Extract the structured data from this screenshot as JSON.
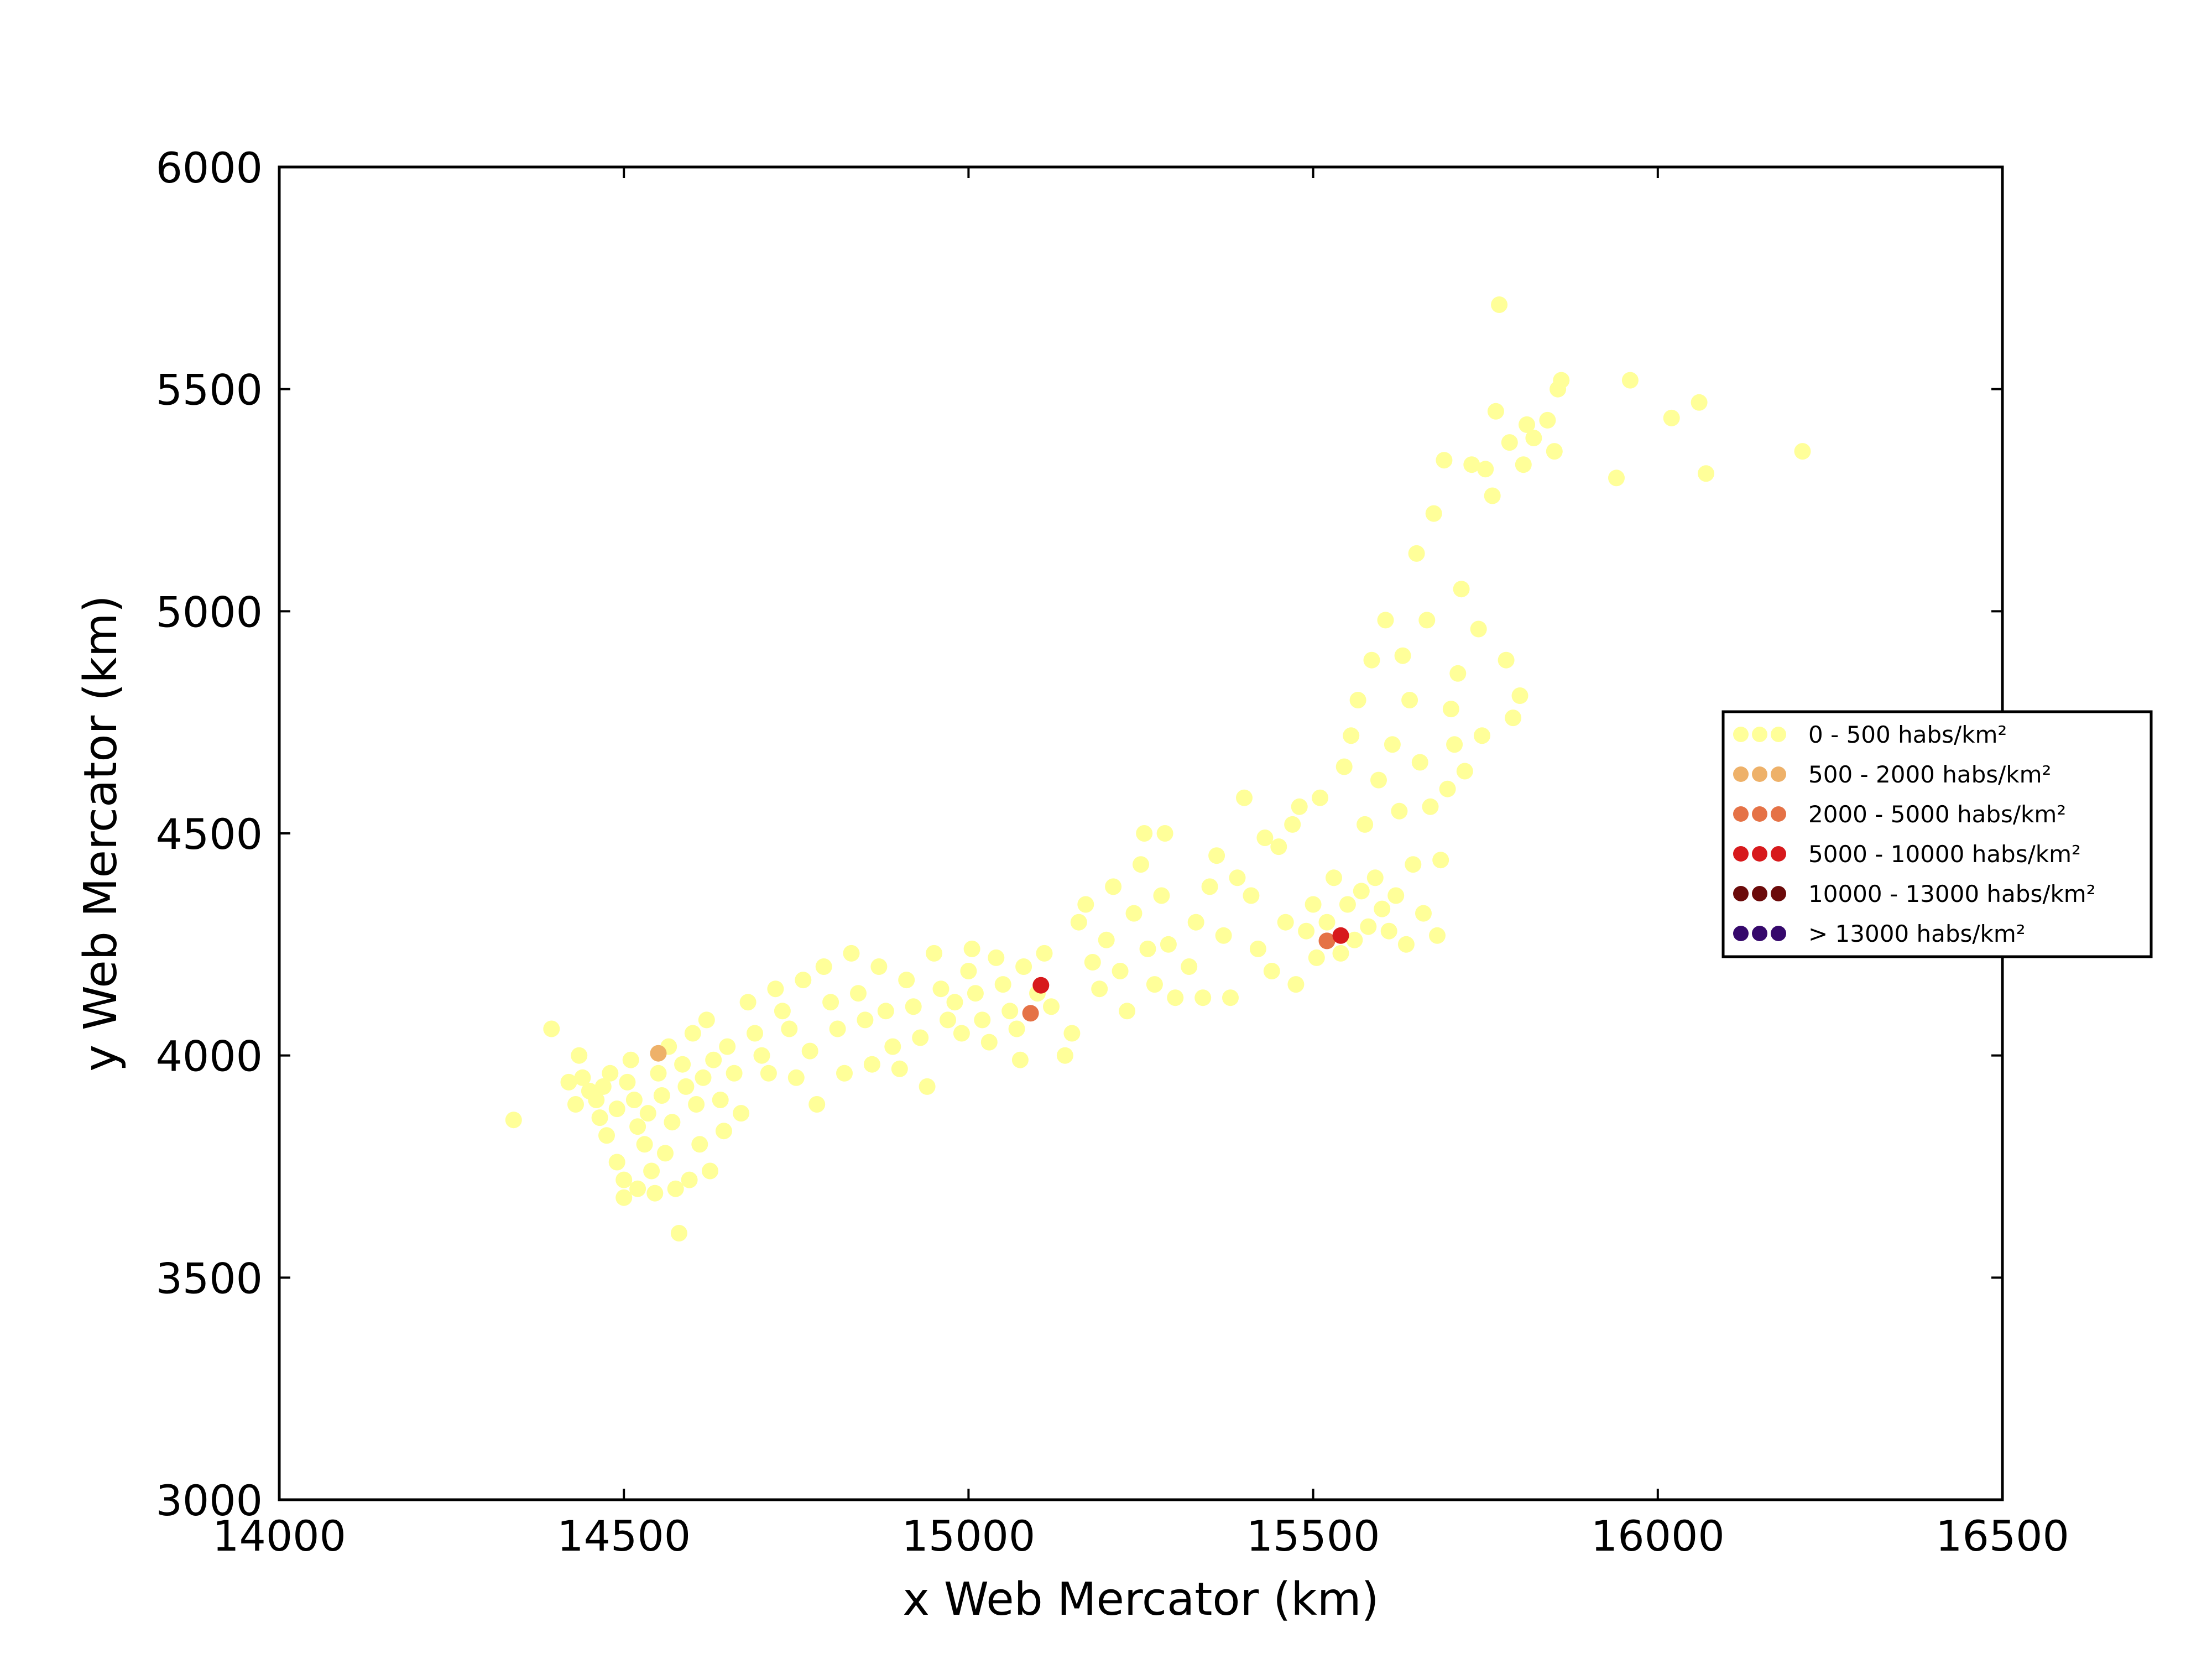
{
  "chart_data": {
    "type": "scatter",
    "title": "",
    "xlabel": "x Web Mercator (km)",
    "ylabel": "y Web Mercator (km)",
    "xlim": [
      14000,
      16500
    ],
    "ylim": [
      3000,
      6000
    ],
    "xticks": [
      14000,
      14500,
      15000,
      15500,
      16000,
      16500
    ],
    "yticks": [
      3000,
      3500,
      4000,
      4500,
      5000,
      5500,
      6000
    ],
    "grid": false,
    "legend_position": "right",
    "categories": [
      {
        "label": "0 - 500 habs/km²",
        "color": "#ffff99"
      },
      {
        "label": "500 - 2000 habs/km²",
        "color": "#eeb169"
      },
      {
        "label": "2000 - 5000 habs/km²",
        "color": "#e57246"
      },
      {
        "label": "5000 - 10000 habs/km²",
        "color": "#d7191c"
      },
      {
        "label": "10000 - 13000 habs/km²",
        "color": "#6b0a0a"
      },
      {
        "label": "> 13000 habs/km²",
        "color": "#35086b"
      }
    ],
    "series": [
      {
        "name": "0 - 500 habs/km²",
        "points": [
          [
            14340,
            3855
          ],
          [
            14395,
            4060
          ],
          [
            14420,
            3940
          ],
          [
            14430,
            3890
          ],
          [
            14435,
            4000
          ],
          [
            14440,
            3950
          ],
          [
            14450,
            3920
          ],
          [
            14460,
            3900
          ],
          [
            14465,
            3860
          ],
          [
            14470,
            3930
          ],
          [
            14475,
            3820
          ],
          [
            14480,
            3960
          ],
          [
            14490,
            3880
          ],
          [
            14490,
            3760
          ],
          [
            14500,
            3720
          ],
          [
            14500,
            3680
          ],
          [
            14505,
            3940
          ],
          [
            14510,
            3990
          ],
          [
            14515,
            3900
          ],
          [
            14520,
            3840
          ],
          [
            14520,
            3700
          ],
          [
            14530,
            3800
          ],
          [
            14535,
            3870
          ],
          [
            14540,
            3740
          ],
          [
            14545,
            3690
          ],
          [
            14550,
            3960
          ],
          [
            14555,
            3910
          ],
          [
            14560,
            3780
          ],
          [
            14565,
            4020
          ],
          [
            14570,
            3850
          ],
          [
            14575,
            3700
          ],
          [
            14580,
            3600
          ],
          [
            14585,
            3980
          ],
          [
            14590,
            3930
          ],
          [
            14595,
            3720
          ],
          [
            14600,
            4050
          ],
          [
            14605,
            3890
          ],
          [
            14610,
            3800
          ],
          [
            14615,
            3950
          ],
          [
            14620,
            4080
          ],
          [
            14625,
            3740
          ],
          [
            14630,
            3990
          ],
          [
            14640,
            3900
          ],
          [
            14645,
            3830
          ],
          [
            14650,
            4020
          ],
          [
            14660,
            3960
          ],
          [
            14670,
            3870
          ],
          [
            14680,
            4120
          ],
          [
            14690,
            4050
          ],
          [
            14700,
            4000
          ],
          [
            14710,
            3960
          ],
          [
            14720,
            4150
          ],
          [
            14730,
            4100
          ],
          [
            14740,
            4060
          ],
          [
            14750,
            3950
          ],
          [
            14760,
            4170
          ],
          [
            14770,
            4010
          ],
          [
            14780,
            3890
          ],
          [
            14790,
            4200
          ],
          [
            14800,
            4120
          ],
          [
            14810,
            4060
          ],
          [
            14820,
            3960
          ],
          [
            14830,
            4230
          ],
          [
            14840,
            4140
          ],
          [
            14850,
            4080
          ],
          [
            14860,
            3980
          ],
          [
            14870,
            4200
          ],
          [
            14880,
            4100
          ],
          [
            14890,
            4020
          ],
          [
            14900,
            3970
          ],
          [
            14910,
            4170
          ],
          [
            14920,
            4110
          ],
          [
            14930,
            4040
          ],
          [
            14940,
            3930
          ],
          [
            14950,
            4230
          ],
          [
            14960,
            4150
          ],
          [
            14970,
            4080
          ],
          [
            14980,
            4120
          ],
          [
            14990,
            4050
          ],
          [
            15000,
            4190
          ],
          [
            15005,
            4240
          ],
          [
            15010,
            4140
          ],
          [
            15020,
            4080
          ],
          [
            15030,
            4030
          ],
          [
            15040,
            4220
          ],
          [
            15050,
            4160
          ],
          [
            15060,
            4100
          ],
          [
            15070,
            4060
          ],
          [
            15075,
            3990
          ],
          [
            15080,
            4200
          ],
          [
            15100,
            4140
          ],
          [
            15110,
            4230
          ],
          [
            15120,
            4110
          ],
          [
            15140,
            4000
          ],
          [
            15150,
            4050
          ],
          [
            15160,
            4300
          ],
          [
            15170,
            4340
          ],
          [
            15180,
            4210
          ],
          [
            15190,
            4150
          ],
          [
            15200,
            4260
          ],
          [
            15210,
            4380
          ],
          [
            15220,
            4190
          ],
          [
            15230,
            4100
          ],
          [
            15240,
            4320
          ],
          [
            15250,
            4430
          ],
          [
            15255,
            4500
          ],
          [
            15260,
            4240
          ],
          [
            15270,
            4160
          ],
          [
            15280,
            4360
          ],
          [
            15285,
            4500
          ],
          [
            15290,
            4250
          ],
          [
            15300,
            4130
          ],
          [
            15320,
            4200
          ],
          [
            15330,
            4300
          ],
          [
            15340,
            4130
          ],
          [
            15350,
            4380
          ],
          [
            15360,
            4450
          ],
          [
            15370,
            4270
          ],
          [
            15380,
            4130
          ],
          [
            15390,
            4400
          ],
          [
            15400,
            4580
          ],
          [
            15410,
            4360
          ],
          [
            15420,
            4240
          ],
          [
            15430,
            4490
          ],
          [
            15440,
            4190
          ],
          [
            15450,
            4470
          ],
          [
            15460,
            4300
          ],
          [
            15470,
            4520
          ],
          [
            15475,
            4160
          ],
          [
            15480,
            4560
          ],
          [
            15490,
            4280
          ],
          [
            15500,
            4340
          ],
          [
            15505,
            4220
          ],
          [
            15510,
            4580
          ],
          [
            15520,
            4300
          ],
          [
            15530,
            4400
          ],
          [
            15540,
            4230
          ],
          [
            15545,
            4650
          ],
          [
            15550,
            4340
          ],
          [
            15555,
            4720
          ],
          [
            15560,
            4260
          ],
          [
            15565,
            4800
          ],
          [
            15570,
            4370
          ],
          [
            15575,
            4520
          ],
          [
            15580,
            4290
          ],
          [
            15585,
            4890
          ],
          [
            15590,
            4400
          ],
          [
            15595,
            4620
          ],
          [
            15600,
            4330
          ],
          [
            15605,
            4980
          ],
          [
            15610,
            4280
          ],
          [
            15615,
            4700
          ],
          [
            15620,
            4360
          ],
          [
            15625,
            4550
          ],
          [
            15630,
            4900
          ],
          [
            15635,
            4250
          ],
          [
            15640,
            4800
          ],
          [
            15645,
            4430
          ],
          [
            15650,
            5130
          ],
          [
            15655,
            4660
          ],
          [
            15660,
            4320
          ],
          [
            15665,
            4980
          ],
          [
            15670,
            4560
          ],
          [
            15675,
            5220
          ],
          [
            15680,
            4270
          ],
          [
            15685,
            4440
          ],
          [
            15690,
            5340
          ],
          [
            15695,
            4600
          ],
          [
            15700,
            4780
          ],
          [
            15705,
            4700
          ],
          [
            15710,
            4860
          ],
          [
            15715,
            5050
          ],
          [
            15720,
            4640
          ],
          [
            15730,
            5330
          ],
          [
            15740,
            4960
          ],
          [
            15745,
            4720
          ],
          [
            15750,
            5320
          ],
          [
            15760,
            5260
          ],
          [
            15765,
            5450
          ],
          [
            15770,
            5690
          ],
          [
            15780,
            4890
          ],
          [
            15785,
            5380
          ],
          [
            15790,
            4760
          ],
          [
            15800,
            4810
          ],
          [
            15805,
            5330
          ],
          [
            15810,
            5420
          ],
          [
            15820,
            5390
          ],
          [
            15840,
            5430
          ],
          [
            15850,
            5360
          ],
          [
            15855,
            5500
          ],
          [
            15860,
            5520
          ],
          [
            15940,
            5300
          ],
          [
            15960,
            5520
          ],
          [
            16020,
            5435
          ],
          [
            16060,
            5470
          ],
          [
            16070,
            5310
          ],
          [
            16210,
            5360
          ]
        ]
      },
      {
        "name": "500 - 2000 habs/km²",
        "points": [
          [
            14550,
            4005
          ]
        ]
      },
      {
        "name": "2000 - 5000 habs/km²",
        "points": [
          [
            15090,
            4095
          ],
          [
            15520,
            4258
          ]
        ]
      },
      {
        "name": "5000 - 10000 habs/km²",
        "points": [
          [
            15105,
            4158
          ],
          [
            15540,
            4270
          ]
        ]
      },
      {
        "name": "10000 - 13000 habs/km²",
        "points": []
      },
      {
        "name": "> 13000 habs/km²",
        "points": []
      }
    ]
  }
}
